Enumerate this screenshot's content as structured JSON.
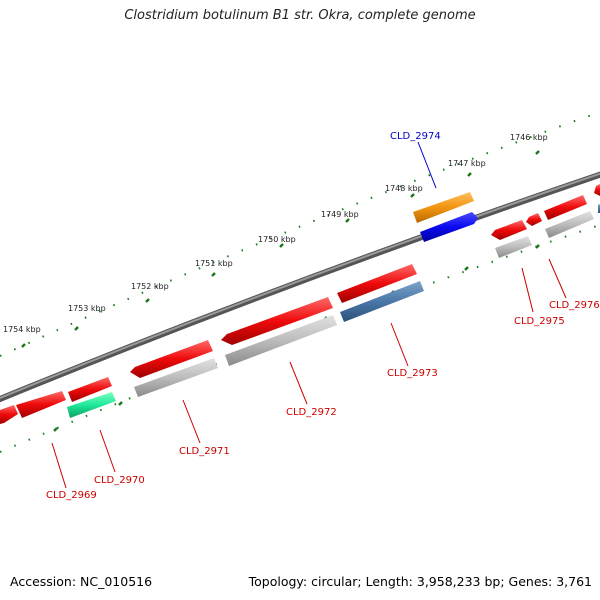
{
  "title": "Clostridium botulinum B1 str. Okra, complete genome",
  "footer": {
    "accession": "Accession: NC_010516",
    "meta": "Topology: circular; Length: 3,958,233 bp; Genes: 3,761"
  },
  "colors": {
    "backbone": "#777777",
    "tick": "#1a7a1a",
    "cds_forward": "#ee1111",
    "cds_reverse": "#bbbbbb",
    "label_red": "#cc0000",
    "label_blue": "#0000cc"
  },
  "scale_labels": [
    "1746 kbp",
    "1747 kbp",
    "1748 kbp",
    "1749 kbp",
    "1750 kbp",
    "1751 kbp",
    "1752 kbp",
    "1753 kbp",
    "1754 kbp"
  ],
  "gene_labels": [
    "CLD_2969",
    "CLD_2970",
    "CLD_2971",
    "CLD_2972",
    "CLD_2973",
    "CLD_2974",
    "CLD_2975",
    "CLD_2976"
  ]
}
